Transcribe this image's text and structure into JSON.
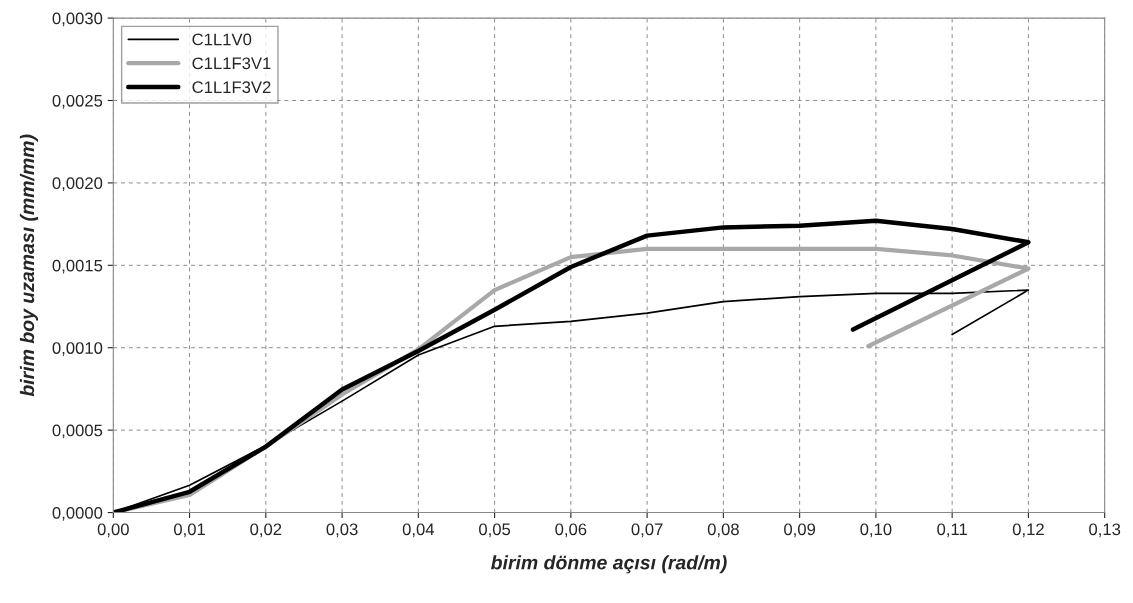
{
  "chart_data": {
    "type": "line",
    "xlabel": "birim dönme açısı (rad/m)",
    "ylabel": "birim boy uzaması (mm/mm)",
    "series": [
      {
        "name": "C1L1V0",
        "color": "#000000",
        "x": [
          0,
          0.01,
          0.02,
          0.03,
          0.04,
          0.05,
          0.06,
          0.07,
          0.08,
          0.09,
          0.1,
          0.11,
          0.12,
          0.11
        ],
        "values": [
          0,
          0.000166,
          0.000406,
          0.000676,
          0.000956,
          0.00113,
          0.00116,
          0.00121,
          0.00128,
          0.00131,
          0.00133,
          0.00133,
          0.00135,
          0.00108
        ]
      },
      {
        "name": "C1L1F3V1",
        "color": "#a8a8a8",
        "x": [
          0,
          0.01,
          0.02,
          0.03,
          0.04,
          0.05,
          0.06,
          0.07,
          0.08,
          0.09,
          0.1,
          0.11,
          0.12,
          0.099
        ],
        "values": [
          0,
          0.000106,
          0.0004,
          0.000716,
          0.00099,
          0.00135,
          0.00155,
          0.0016,
          0.0016,
          0.0016,
          0.0016,
          0.00156,
          0.00148,
          0.00101
        ]
      },
      {
        "name": "C1L1F3V2",
        "color": "#000000",
        "x": [
          0,
          0.01,
          0.02,
          0.03,
          0.04,
          0.05,
          0.06,
          0.07,
          0.08,
          0.09,
          0.1,
          0.11,
          0.12,
          0.097
        ],
        "values": [
          0,
          0.000126,
          0.0004,
          0.000746,
          0.00098,
          0.00123,
          0.00149,
          0.00168,
          0.00173,
          0.00174,
          0.00177,
          0.00172,
          0.00164,
          0.00111
        ]
      }
    ],
    "xlim": [
      0,
      0.13
    ],
    "xticks": [
      {
        "value": 0,
        "label": "0,00"
      },
      {
        "value": 0.01,
        "label": "0,01"
      },
      {
        "value": 0.02,
        "label": "0,02"
      },
      {
        "value": 0.03,
        "label": "0,03"
      },
      {
        "value": 0.04,
        "label": "0,04"
      },
      {
        "value": 0.05,
        "label": "0,05"
      },
      {
        "value": 0.06,
        "label": "0,06"
      },
      {
        "value": 0.07,
        "label": "0,07"
      },
      {
        "value": 0.08,
        "label": "0,08"
      },
      {
        "value": 0.09,
        "label": "0,09"
      },
      {
        "value": 0.1,
        "label": "0,10"
      },
      {
        "value": 0.11,
        "label": "0,11"
      },
      {
        "value": 0.12,
        "label": "0,12"
      },
      {
        "value": 0.13,
        "label": "0,13"
      }
    ],
    "ylim": [
      0,
      0.003
    ],
    "yticks": [
      {
        "value": 0,
        "label": "0,0000"
      },
      {
        "value": 0.0005,
        "label": "0,0005"
      },
      {
        "value": 0.001,
        "label": "0,0010"
      },
      {
        "value": 0.0015,
        "label": "0,0015"
      },
      {
        "value": 0.002,
        "label": "0,0020"
      },
      {
        "value": 0.0025,
        "label": "0,0025"
      },
      {
        "value": 0.003,
        "label": "0,0030"
      }
    ],
    "grid": true,
    "legend": "top left",
    "line_style": "solid",
    "marker": "none"
  }
}
